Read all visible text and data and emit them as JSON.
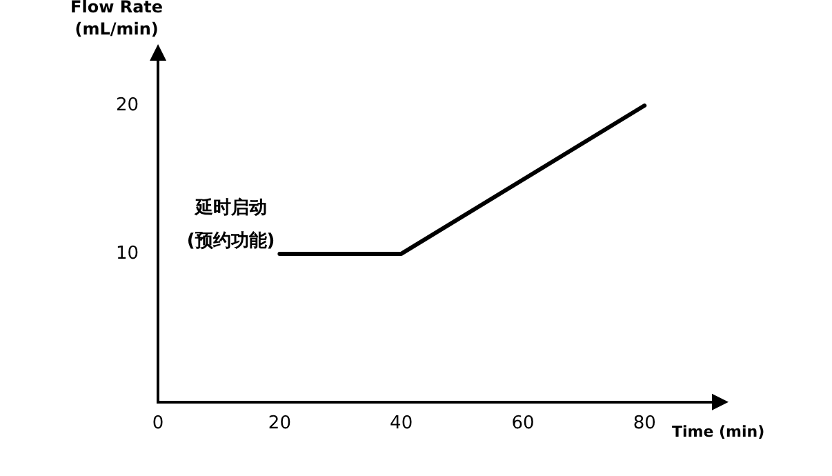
{
  "chart_data": {
    "type": "line",
    "xlabel": "Time (min)",
    "ylabel": "Flow Rate\n(mL/min)",
    "x": [
      20,
      40,
      80
    ],
    "values": [
      10,
      10,
      20
    ],
    "color": "#000000",
    "xlim": [
      0,
      92
    ],
    "xticks": [
      0,
      20,
      40,
      60,
      80
    ],
    "ylim": [
      0,
      23.4
    ],
    "yticks": [
      10,
      20
    ],
    "grid": false,
    "legend": false,
    "marker": "none",
    "line_style": "solid",
    "annotations": [
      "延时启动\n(预约功能)"
    ]
  }
}
